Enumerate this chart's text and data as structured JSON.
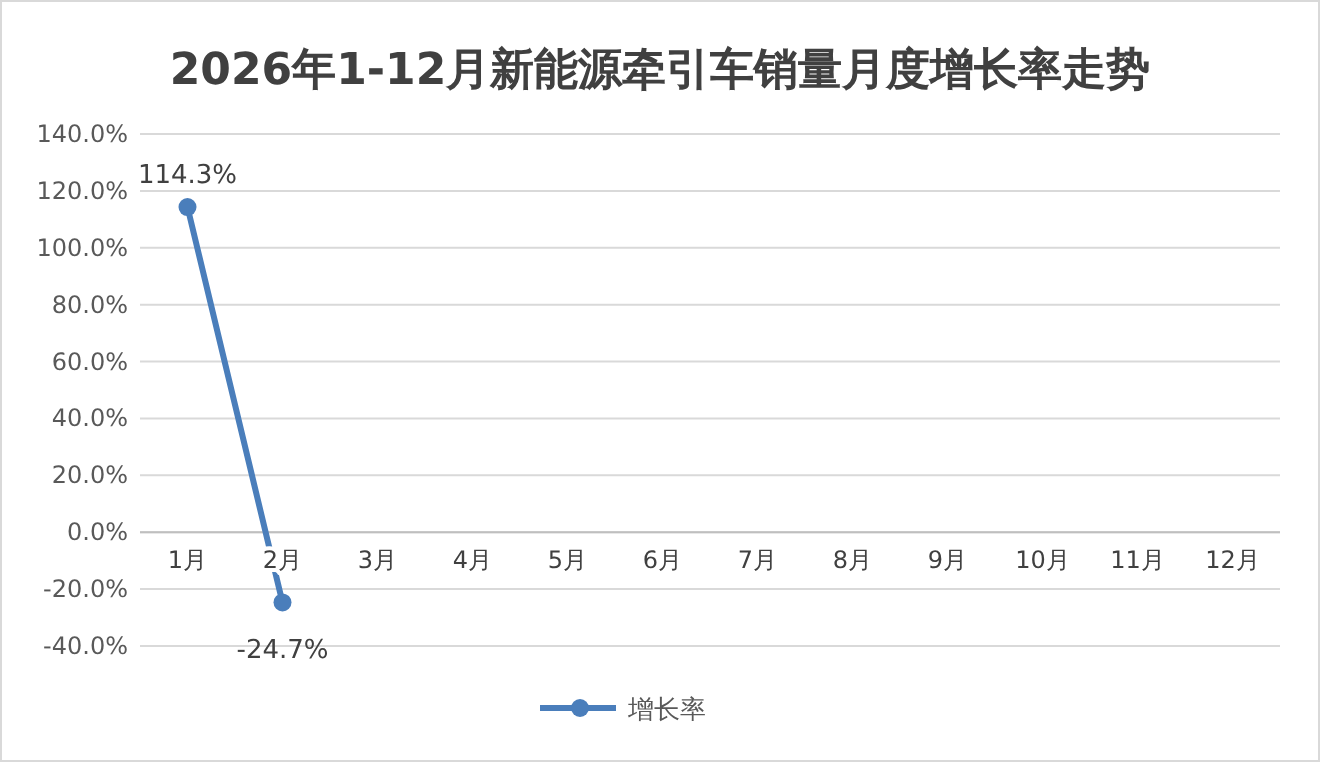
{
  "chart_data": {
    "type": "line",
    "title": "2026年1-12月新能源牵引车销量月度增长率走势",
    "categories": [
      "1月",
      "2月",
      "3月",
      "4月",
      "5月",
      "6月",
      "7月",
      "8月",
      "9月",
      "10月",
      "11月",
      "12月"
    ],
    "series": [
      {
        "name": "增长率",
        "color": "#4a7ebb",
        "values": [
          114.3,
          -24.7,
          null,
          null,
          null,
          null,
          null,
          null,
          null,
          null,
          null,
          null
        ],
        "value_labels": [
          "114.3%",
          "-24.7%",
          null,
          null,
          null,
          null,
          null,
          null,
          null,
          null,
          null,
          null
        ]
      }
    ],
    "ylim": [
      -40,
      140
    ],
    "yticks": [
      {
        "value": -40,
        "label": "-40.0%"
      },
      {
        "value": -20,
        "label": "-20.0%"
      },
      {
        "value": 0,
        "label": "0.0%"
      },
      {
        "value": 20,
        "label": "20.0%"
      },
      {
        "value": 40,
        "label": "40.0%"
      },
      {
        "value": 60,
        "label": "60.0%"
      },
      {
        "value": 80,
        "label": "80.0%"
      },
      {
        "value": 100,
        "label": "100.0%"
      },
      {
        "value": 120,
        "label": "120.0%"
      },
      {
        "value": 140,
        "label": "140.0%"
      }
    ],
    "grid": "y",
    "legend": "bottom",
    "marker": "circle",
    "line_style": "solid"
  }
}
